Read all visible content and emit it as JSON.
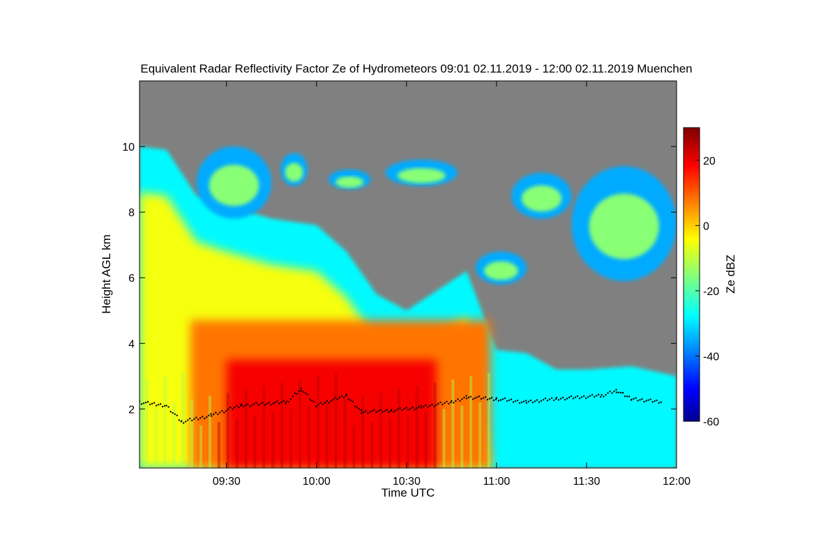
{
  "chart_data": {
    "type": "heatmap",
    "title": "Equivalent Radar Reflectivity Factor Ze of Hydrometeors   09:01 02.11.2019 - 12:00 02.11.2019 Muenchen",
    "xlabel": "Time UTC",
    "ylabel": "Height AGL km",
    "colorbar_label": "Ze dBZ",
    "xlim": [
      "09:01",
      "12:00"
    ],
    "ylim": [
      0.2,
      12.0
    ],
    "x_ticks": [
      "09:30",
      "10:00",
      "10:30",
      "11:00",
      "11:30",
      "12:00"
    ],
    "y_ticks": [
      2,
      4,
      6,
      8,
      10
    ],
    "colorbar_range": [
      -60,
      30
    ],
    "colorbar_ticks": [
      20,
      0,
      -20,
      -40,
      -60
    ],
    "colormap": "jet",
    "no_data_color": "#808080",
    "cloud_top_km": [
      {
        "t": "09:01",
        "h": 10.0
      },
      {
        "t": "09:10",
        "h": 9.9
      },
      {
        "t": "09:20",
        "h": 8.5
      },
      {
        "t": "09:30",
        "h": 8.2
      },
      {
        "t": "09:45",
        "h": 7.8
      },
      {
        "t": "10:00",
        "h": 7.6
      },
      {
        "t": "10:10",
        "h": 6.8
      },
      {
        "t": "10:20",
        "h": 5.5
      },
      {
        "t": "10:30",
        "h": 5.0
      },
      {
        "t": "10:40",
        "h": 5.6
      },
      {
        "t": "10:50",
        "h": 6.2
      },
      {
        "t": "11:00",
        "h": 3.8
      },
      {
        "t": "11:10",
        "h": 3.7
      },
      {
        "t": "11:20",
        "h": 3.2
      },
      {
        "t": "11:30",
        "h": 3.2
      },
      {
        "t": "11:45",
        "h": 3.3
      },
      {
        "t": "12:00",
        "h": 3.0
      }
    ],
    "upper_cloud_patches": [
      {
        "t0": "09:20",
        "t1": "09:45",
        "h0": 7.8,
        "h1": 10.0
      },
      {
        "t0": "09:48",
        "t1": "09:57",
        "h0": 8.8,
        "h1": 9.8
      },
      {
        "t0": "10:04",
        "t1": "10:18",
        "h0": 8.7,
        "h1": 9.3
      },
      {
        "t0": "10:23",
        "t1": "10:47",
        "h0": 8.8,
        "h1": 9.6
      },
      {
        "t0": "11:05",
        "t1": "11:25",
        "h0": 7.8,
        "h1": 9.2
      },
      {
        "t0": "11:25",
        "t1": "12:00",
        "h0": 5.9,
        "h1": 9.4
      },
      {
        "t0": "10:53",
        "t1": "11:10",
        "h0": 5.8,
        "h1": 6.8
      }
    ],
    "melting_layer_km": [
      {
        "t": "09:01",
        "h": 2.2
      },
      {
        "t": "09:10",
        "h": 2.1
      },
      {
        "t": "09:15",
        "h": 1.6
      },
      {
        "t": "09:25",
        "h": 1.8
      },
      {
        "t": "09:35",
        "h": 2.1
      },
      {
        "t": "09:50",
        "h": 2.2
      },
      {
        "t": "09:55",
        "h": 2.6
      },
      {
        "t": "10:00",
        "h": 2.1
      },
      {
        "t": "10:10",
        "h": 2.4
      },
      {
        "t": "10:15",
        "h": 1.9
      },
      {
        "t": "10:25",
        "h": 1.95
      },
      {
        "t": "10:35",
        "h": 2.05
      },
      {
        "t": "10:45",
        "h": 2.2
      },
      {
        "t": "10:50",
        "h": 2.35
      },
      {
        "t": "11:00",
        "h": 2.3
      },
      {
        "t": "11:10",
        "h": 2.2
      },
      {
        "t": "11:20",
        "h": 2.3
      },
      {
        "t": "11:35",
        "h": 2.4
      },
      {
        "t": "11:40",
        "h": 2.55
      },
      {
        "t": "11:45",
        "h": 2.3
      },
      {
        "t": "11:55",
        "h": 2.2
      }
    ],
    "max_reflectivity_dBZ": 25,
    "max_reflectivity_time_range": [
      "09:30",
      "10:40"
    ],
    "max_reflectivity_height_range_km": [
      0.2,
      3.5
    ],
    "cirrus_reflectivity_dBZ": [
      -35,
      -15
    ],
    "precipitation_end_time": "10:58"
  }
}
